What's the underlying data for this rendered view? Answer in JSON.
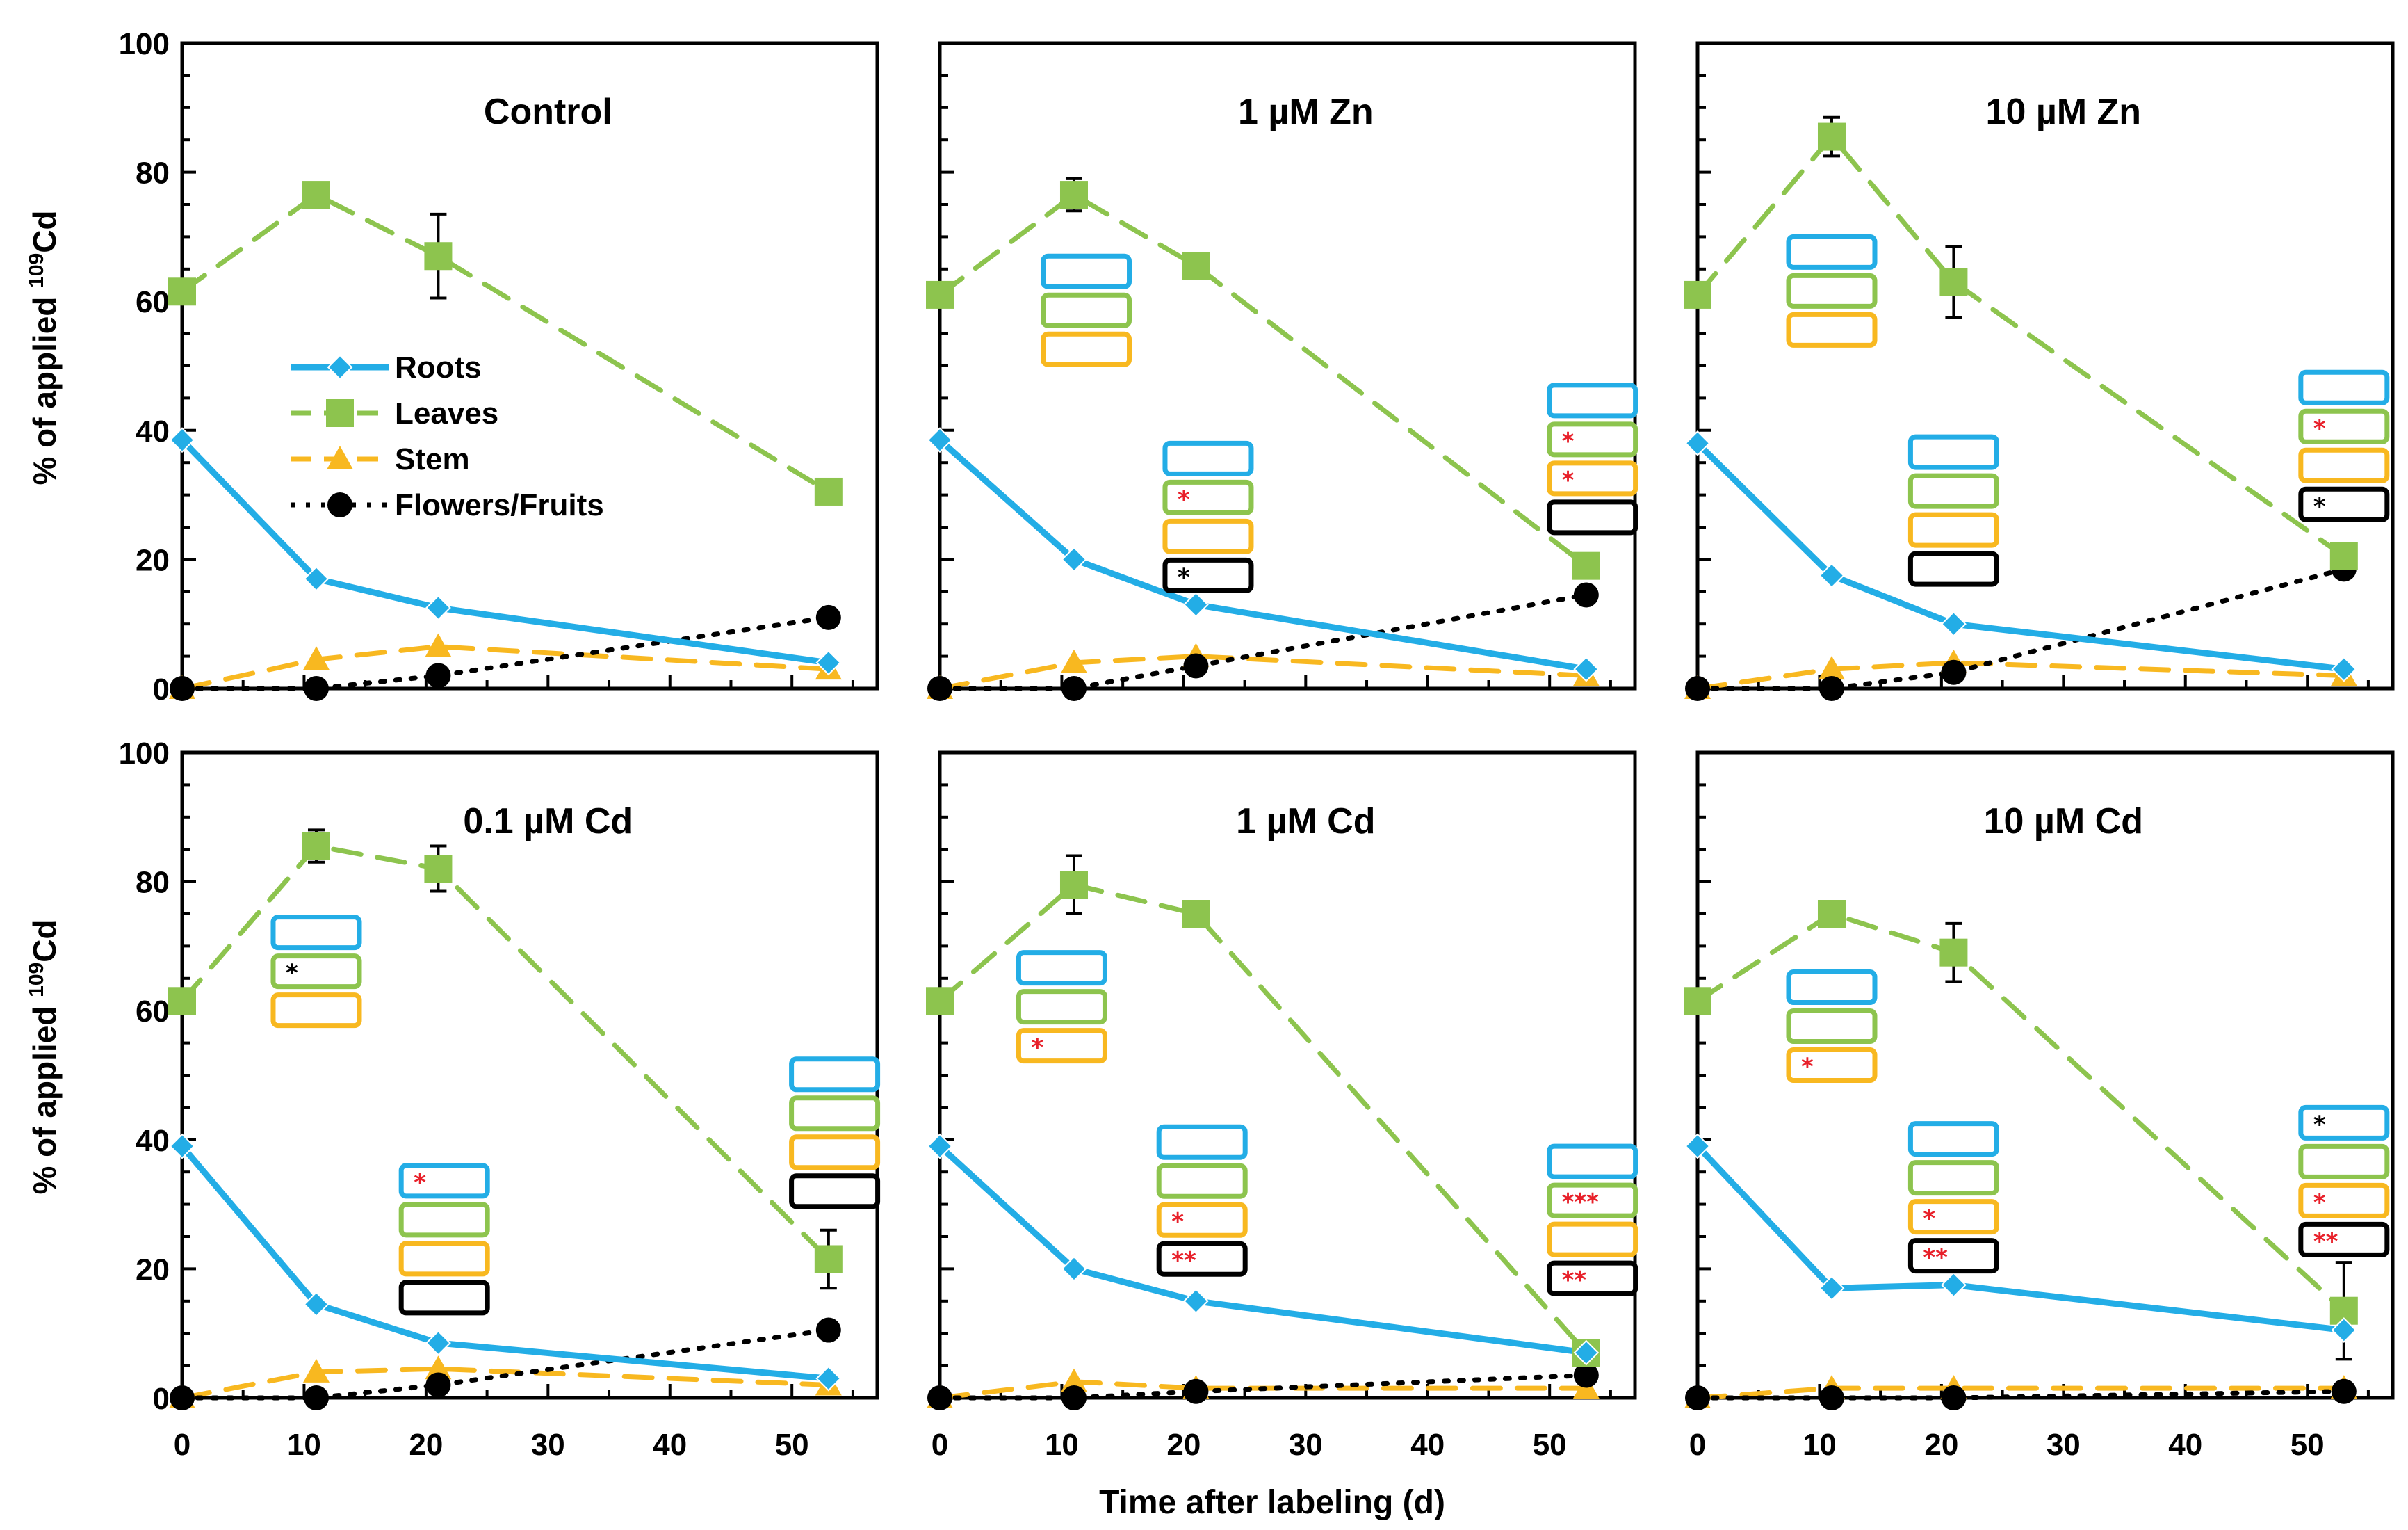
{
  "colors": {
    "roots": "#23ade6",
    "leaves": "#8dc44e",
    "stem": "#f8b820",
    "flowers": "#000000",
    "star_red": "#e8202a",
    "star_black": "#000000"
  },
  "chart_data": {
    "type": "line",
    "xlabel": "Time after labeling  (d)",
    "ylabel_prefix": "% of applied ",
    "ylabel_sup": "109",
    "ylabel_suffix": "Cd",
    "xlim": [
      0,
      57
    ],
    "ylim": [
      0,
      100
    ],
    "xticks": [
      "0",
      "10",
      "20",
      "30",
      "40",
      "50"
    ],
    "yticks": [
      "0",
      "20",
      "40",
      "60",
      "80",
      "100"
    ],
    "legend": {
      "roots": "Roots",
      "leaves": "Leaves",
      "stem": "Stem",
      "flowers": "Flowers/Fruits",
      "position": "middle-left of first panel"
    },
    "panels": [
      {
        "title": "Control",
        "series": [
          {
            "key": "roots",
            "x": [
              0,
              11,
              21,
              53
            ],
            "y": [
              38.5,
              17,
              12.5,
              4
            ]
          },
          {
            "key": "leaves",
            "x": [
              0,
              11,
              21,
              53
            ],
            "y": [
              61.5,
              76.5,
              67,
              30.5
            ],
            "err": [
              0,
              1,
              6.5,
              0
            ]
          },
          {
            "key": "stem",
            "x": [
              0,
              11,
              21,
              53
            ],
            "y": [
              0,
              4.5,
              6.5,
              3
            ]
          },
          {
            "key": "flowers",
            "x": [
              0,
              11,
              21,
              53
            ],
            "y": [
              0,
              0,
              2,
              11
            ]
          }
        ],
        "markers": []
      },
      {
        "title": "1 µM Zn",
        "series": [
          {
            "key": "roots",
            "x": [
              0,
              11,
              21,
              53
            ],
            "y": [
              38.5,
              20,
              13,
              3
            ]
          },
          {
            "key": "leaves",
            "x": [
              0,
              11,
              21,
              53
            ],
            "y": [
              61,
              76.5,
              65.5,
              19
            ],
            "err": [
              0,
              2.5,
              0,
              0
            ]
          },
          {
            "key": "stem",
            "x": [
              0,
              11,
              21,
              53
            ],
            "y": [
              0,
              4,
              5,
              2
            ]
          },
          {
            "key": "flowers",
            "x": [
              0,
              11,
              21,
              53
            ],
            "y": [
              0,
              0,
              3.5,
              14.5
            ]
          }
        ],
        "markers": [
          {
            "x": 12,
            "y": 67,
            "boxes": [
              {
                "key": "roots",
                "stars": ""
              },
              {
                "key": "leaves",
                "stars": ""
              },
              {
                "key": "stem",
                "stars": ""
              }
            ]
          },
          {
            "x": 22,
            "y": 38,
            "boxes": [
              {
                "key": "roots",
                "stars": ""
              },
              {
                "key": "leaves",
                "stars": "*",
                "star_color": "red"
              },
              {
                "key": "stem",
                "stars": ""
              },
              {
                "key": "flowers",
                "stars": "*",
                "star_color": "black"
              }
            ]
          },
          {
            "x": 53.5,
            "y": 47,
            "boxes": [
              {
                "key": "roots",
                "stars": ""
              },
              {
                "key": "leaves",
                "stars": "*",
                "star_color": "red"
              },
              {
                "key": "stem",
                "stars": "*",
                "star_color": "red"
              },
              {
                "key": "flowers",
                "stars": ""
              }
            ]
          }
        ]
      },
      {
        "title": "10 µM Zn",
        "series": [
          {
            "key": "roots",
            "x": [
              0,
              11,
              21,
              53
            ],
            "y": [
              38,
              17.5,
              10,
              3
            ]
          },
          {
            "key": "leaves",
            "x": [
              0,
              11,
              21,
              53
            ],
            "y": [
              61,
              85.5,
              63,
              20.5
            ],
            "err": [
              0,
              3,
              5.5,
              0
            ]
          },
          {
            "key": "stem",
            "x": [
              0,
              11,
              21,
              53
            ],
            "y": [
              0,
              3,
              4,
              2
            ]
          },
          {
            "key": "flowers",
            "x": [
              0,
              11,
              21,
              53
            ],
            "y": [
              0,
              0,
              2.5,
              18.5
            ]
          }
        ],
        "markers": [
          {
            "x": 11,
            "y": 70,
            "boxes": [
              {
                "key": "roots",
                "stars": ""
              },
              {
                "key": "leaves",
                "stars": ""
              },
              {
                "key": "stem",
                "stars": ""
              }
            ]
          },
          {
            "x": 21,
            "y": 39,
            "boxes": [
              {
                "key": "roots",
                "stars": ""
              },
              {
                "key": "leaves",
                "stars": ""
              },
              {
                "key": "stem",
                "stars": ""
              },
              {
                "key": "flowers",
                "stars": ""
              }
            ]
          },
          {
            "x": 53,
            "y": 49,
            "boxes": [
              {
                "key": "roots",
                "stars": ""
              },
              {
                "key": "leaves",
                "stars": "*",
                "star_color": "red"
              },
              {
                "key": "stem",
                "stars": ""
              },
              {
                "key": "flowers",
                "stars": "*",
                "star_color": "black"
              }
            ]
          }
        ]
      },
      {
        "title": "0.1 µM Cd",
        "series": [
          {
            "key": "roots",
            "x": [
              0,
              11,
              21,
              53
            ],
            "y": [
              39,
              14.5,
              8.5,
              3
            ]
          },
          {
            "key": "leaves",
            "x": [
              0,
              11,
              21,
              53
            ],
            "y": [
              61.5,
              85.5,
              82,
              21.5
            ],
            "err": [
              0,
              2.5,
              3.5,
              4.5
            ]
          },
          {
            "key": "stem",
            "x": [
              0,
              11,
              21,
              53
            ],
            "y": [
              0,
              4,
              4.5,
              2
            ]
          },
          {
            "key": "flowers",
            "x": [
              0,
              11,
              21,
              53
            ],
            "y": [
              0,
              0,
              2,
              10.5
            ]
          }
        ],
        "markers": [
          {
            "x": 11,
            "y": 74.5,
            "boxes": [
              {
                "key": "roots",
                "stars": ""
              },
              {
                "key": "leaves",
                "stars": "*",
                "star_color": "black"
              },
              {
                "key": "stem",
                "stars": ""
              }
            ]
          },
          {
            "x": 21.5,
            "y": 36,
            "boxes": [
              {
                "key": "roots",
                "stars": "*",
                "star_color": "red"
              },
              {
                "key": "leaves",
                "stars": ""
              },
              {
                "key": "stem",
                "stars": ""
              },
              {
                "key": "flowers",
                "stars": ""
              }
            ]
          },
          {
            "x": 53.5,
            "y": 52.5,
            "boxes": [
              {
                "key": "roots",
                "stars": ""
              },
              {
                "key": "leaves",
                "stars": ""
              },
              {
                "key": "stem",
                "stars": ""
              },
              {
                "key": "flowers",
                "stars": ""
              }
            ]
          }
        ]
      },
      {
        "title": "1 µM Cd",
        "series": [
          {
            "key": "roots",
            "x": [
              0,
              11,
              21,
              53
            ],
            "y": [
              39,
              20,
              15,
              7
            ]
          },
          {
            "key": "leaves",
            "x": [
              0,
              11,
              21,
              53
            ],
            "y": [
              61.5,
              79.5,
              75,
              7
            ],
            "err": [
              0,
              4.5,
              0,
              0
            ]
          },
          {
            "key": "stem",
            "x": [
              0,
              11,
              21,
              53
            ],
            "y": [
              0,
              2.5,
              1.5,
              1.5
            ]
          },
          {
            "key": "flowers",
            "x": [
              0,
              11,
              21,
              53
            ],
            "y": [
              0,
              0,
              1,
              3.5
            ]
          }
        ],
        "markers": [
          {
            "x": 10,
            "y": 69,
            "boxes": [
              {
                "key": "roots",
                "stars": ""
              },
              {
                "key": "leaves",
                "stars": ""
              },
              {
                "key": "stem",
                "stars": "*",
                "star_color": "red"
              }
            ]
          },
          {
            "x": 21.5,
            "y": 42,
            "boxes": [
              {
                "key": "roots",
                "stars": ""
              },
              {
                "key": "leaves",
                "stars": ""
              },
              {
                "key": "stem",
                "stars": "*",
                "star_color": "red"
              },
              {
                "key": "flowers",
                "stars": "**",
                "star_color": "red"
              }
            ]
          },
          {
            "x": 53.5,
            "y": 39,
            "boxes": [
              {
                "key": "roots",
                "stars": ""
              },
              {
                "key": "leaves",
                "stars": "***",
                "star_color": "red"
              },
              {
                "key": "stem",
                "stars": ""
              },
              {
                "key": "flowers",
                "stars": "**",
                "star_color": "red"
              }
            ]
          }
        ]
      },
      {
        "title": "10 µM Cd",
        "series": [
          {
            "key": "roots",
            "x": [
              0,
              11,
              21,
              53
            ],
            "y": [
              39,
              17,
              17.5,
              10.5
            ]
          },
          {
            "key": "leaves",
            "x": [
              0,
              11,
              21,
              53
            ],
            "y": [
              61.5,
              75,
              69,
              13.5
            ],
            "err": [
              0,
              0,
              4.5,
              7.5
            ]
          },
          {
            "key": "stem",
            "x": [
              0,
              11,
              21,
              53
            ],
            "y": [
              0,
              1.5,
              1.5,
              1.5
            ]
          },
          {
            "key": "flowers",
            "x": [
              0,
              11,
              21,
              53
            ],
            "y": [
              0,
              0,
              0,
              1
            ]
          }
        ],
        "markers": [
          {
            "x": 11,
            "y": 66,
            "boxes": [
              {
                "key": "roots",
                "stars": ""
              },
              {
                "key": "leaves",
                "stars": ""
              },
              {
                "key": "stem",
                "stars": "*",
                "star_color": "red"
              }
            ]
          },
          {
            "x": 21,
            "y": 42.5,
            "boxes": [
              {
                "key": "roots",
                "stars": ""
              },
              {
                "key": "leaves",
                "stars": ""
              },
              {
                "key": "stem",
                "stars": "*",
                "star_color": "red"
              },
              {
                "key": "flowers",
                "stars": "**",
                "star_color": "red"
              }
            ]
          },
          {
            "x": 53,
            "y": 45,
            "boxes": [
              {
                "key": "roots",
                "stars": "*",
                "star_color": "black"
              },
              {
                "key": "leaves",
                "stars": ""
              },
              {
                "key": "stem",
                "stars": "*",
                "star_color": "red"
              },
              {
                "key": "flowers",
                "stars": "**",
                "star_color": "red"
              }
            ]
          }
        ]
      }
    ]
  }
}
